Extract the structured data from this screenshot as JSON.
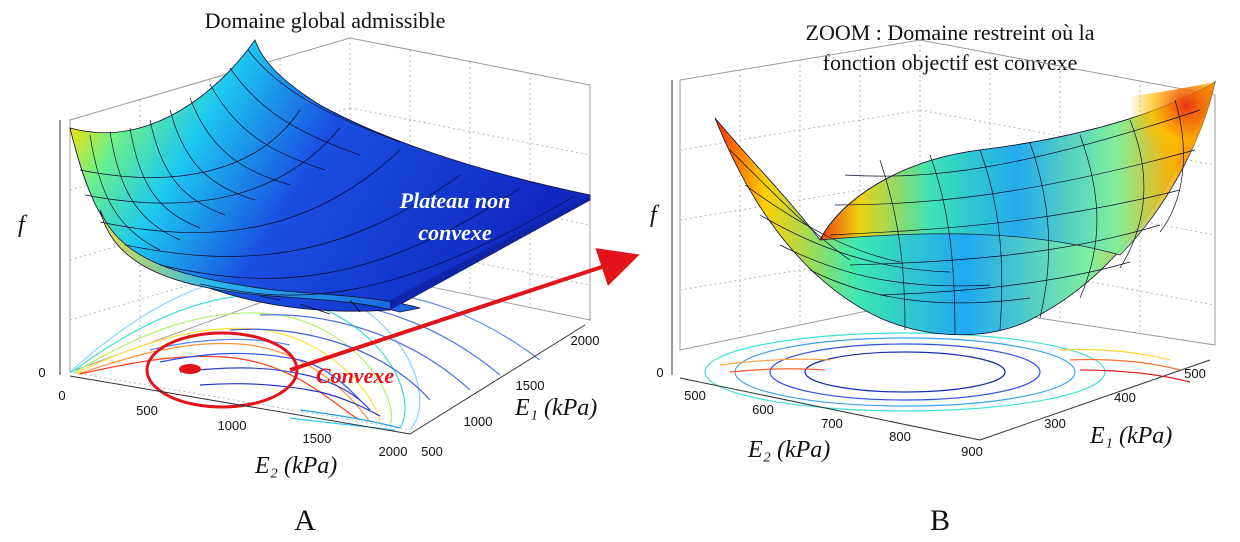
{
  "chart_data": [
    {
      "type": "surface",
      "panel_label": "A",
      "title": "Domaine global admissible",
      "xlabel": "E₂ (kPa)",
      "ylabel": "E₁ (kPa)",
      "zlabel": "f",
      "x_ticks": [
        "0",
        "500",
        "1000",
        "1500",
        "2000"
      ],
      "y_ticks": [
        "500",
        "1000",
        "1500",
        "2000"
      ],
      "z_ticks": [
        "0"
      ],
      "xlim": [
        0,
        2000
      ],
      "ylim": [
        0,
        2000
      ],
      "grid": true,
      "contour_projection": true,
      "annotations": [
        {
          "text": "Plateau non",
          "color": "#ffffff"
        },
        {
          "text": "convexe",
          "color": "#ffffff"
        },
        {
          "text": "Convexe",
          "color": "#e3131b"
        }
      ]
    },
    {
      "type": "surface",
      "panel_label": "B",
      "title": "ZOOM : Domaine restreint où la fonction objectif est convexe",
      "title_lines": [
        "ZOOM : Domaine restreint où la",
        "fonction objectif est convexe"
      ],
      "xlabel": "E₂ (kPa)",
      "ylabel": "E₁ (kPa)",
      "zlabel": "f",
      "x_ticks": [
        "500",
        "600",
        "700",
        "800",
        "900"
      ],
      "y_ticks": [
        "300",
        "400",
        "500"
      ],
      "z_ticks": [
        "0"
      ],
      "xlim": [
        500,
        900
      ],
      "ylim": [
        300,
        500
      ],
      "grid": true,
      "contour_projection": true
    }
  ],
  "colors": {
    "annotation_red": "#e3131b",
    "plateau_blue": "#1530c8",
    "colormap": "jet"
  }
}
